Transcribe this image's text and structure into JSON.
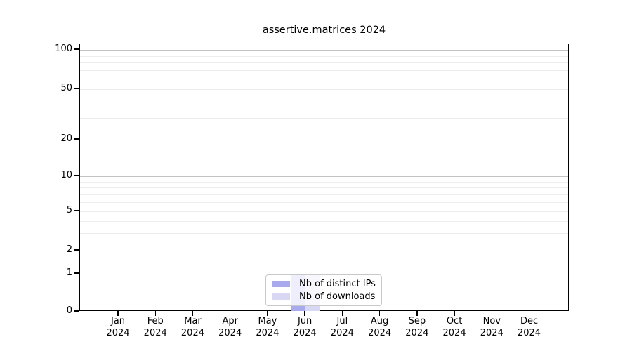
{
  "chart_data": {
    "type": "bar",
    "title": "assertive.matrices 2024",
    "categories": [
      "Jan",
      "Feb",
      "Mar",
      "Apr",
      "May",
      "Jun",
      "Jul",
      "Aug",
      "Sep",
      "Oct",
      "Nov",
      "Dec"
    ],
    "year": "2024",
    "series": [
      {
        "name": "Nb of distinct IPs",
        "color": "#a9a9ee",
        "values": [
          0,
          0,
          0,
          0,
          0,
          1,
          0,
          0,
          0,
          0,
          0,
          0
        ]
      },
      {
        "name": "Nb of downloads",
        "color": "#d8d8f5",
        "values": [
          0,
          0,
          0,
          0,
          0,
          1,
          0,
          0,
          0,
          0,
          0,
          0
        ]
      }
    ],
    "y_ticks": [
      0,
      1,
      2,
      5,
      10,
      20,
      50,
      100
    ],
    "y_major_gridlines": [
      1,
      10,
      100
    ],
    "y_minor_gridlines": [
      2,
      3,
      4,
      5,
      6,
      7,
      8,
      9,
      20,
      30,
      40,
      50,
      60,
      70,
      80,
      90
    ],
    "y_scale": "symlog",
    "ylim": [
      0,
      110
    ],
    "xlabel": "",
    "ylabel": "",
    "grid": true,
    "legend_position": "bottom-center"
  }
}
